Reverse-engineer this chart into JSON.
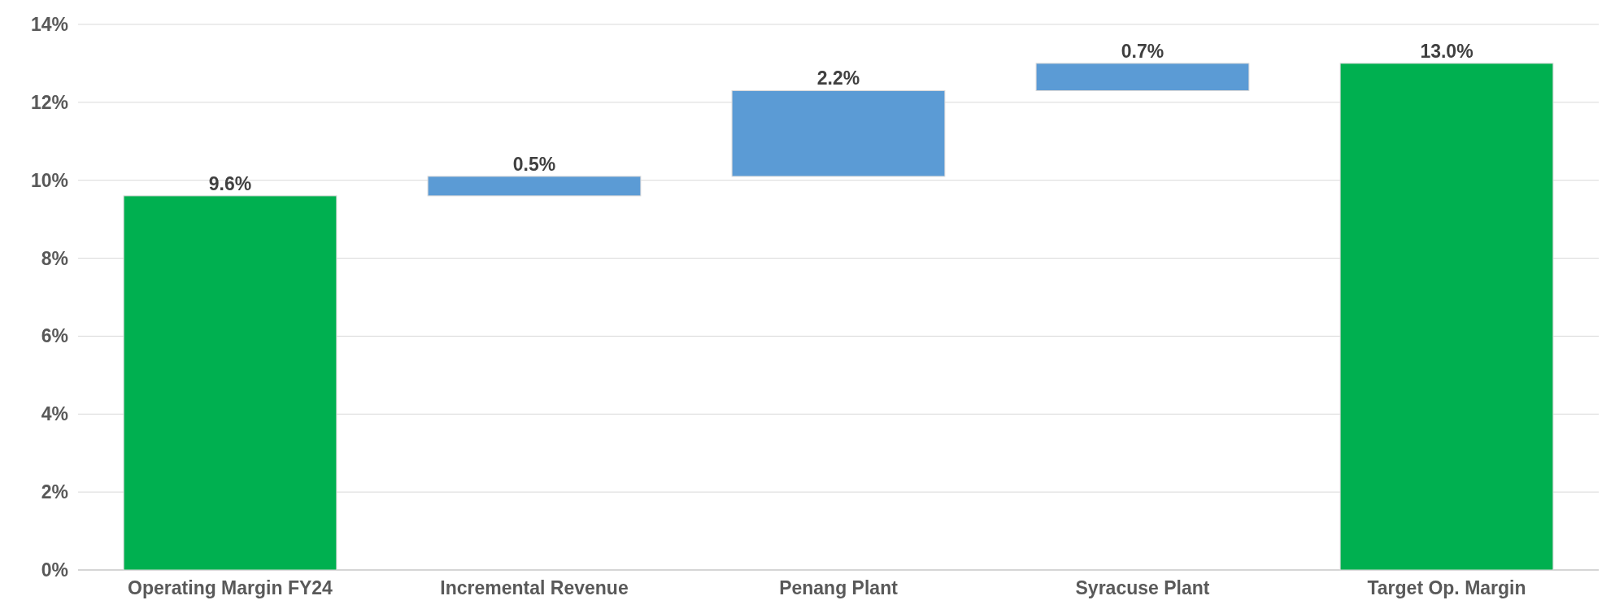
{
  "chart_data": {
    "type": "bar",
    "categories": [
      "Operating Margin FY24",
      "Incremental Revenue",
      "Penang Plant",
      "Syracuse Plant",
      "Target Op. Margin"
    ],
    "values": [
      9.6,
      0.5,
      2.2,
      0.7,
      13.0
    ],
    "base": [
      0,
      9.6,
      10.1,
      12.3,
      0
    ],
    "colors": [
      "#00b050",
      "#5b9bd5",
      "#5b9bd5",
      "#5b9bd5",
      "#00b050"
    ],
    "value_labels": [
      "9.6%",
      "0.5%",
      "2.2%",
      "0.7%",
      "13.0%"
    ],
    "ylim": [
      0,
      14
    ],
    "yticks": [
      {
        "value": 0,
        "label": "0%"
      },
      {
        "value": 2,
        "label": "2%"
      },
      {
        "value": 4,
        "label": "4%"
      },
      {
        "value": 6,
        "label": "6%"
      },
      {
        "value": 8,
        "label": "8%"
      },
      {
        "value": 10,
        "label": "10%"
      },
      {
        "value": 12,
        "label": "12%"
      },
      {
        "value": 14,
        "label": "14%"
      }
    ],
    "grid": "y"
  }
}
